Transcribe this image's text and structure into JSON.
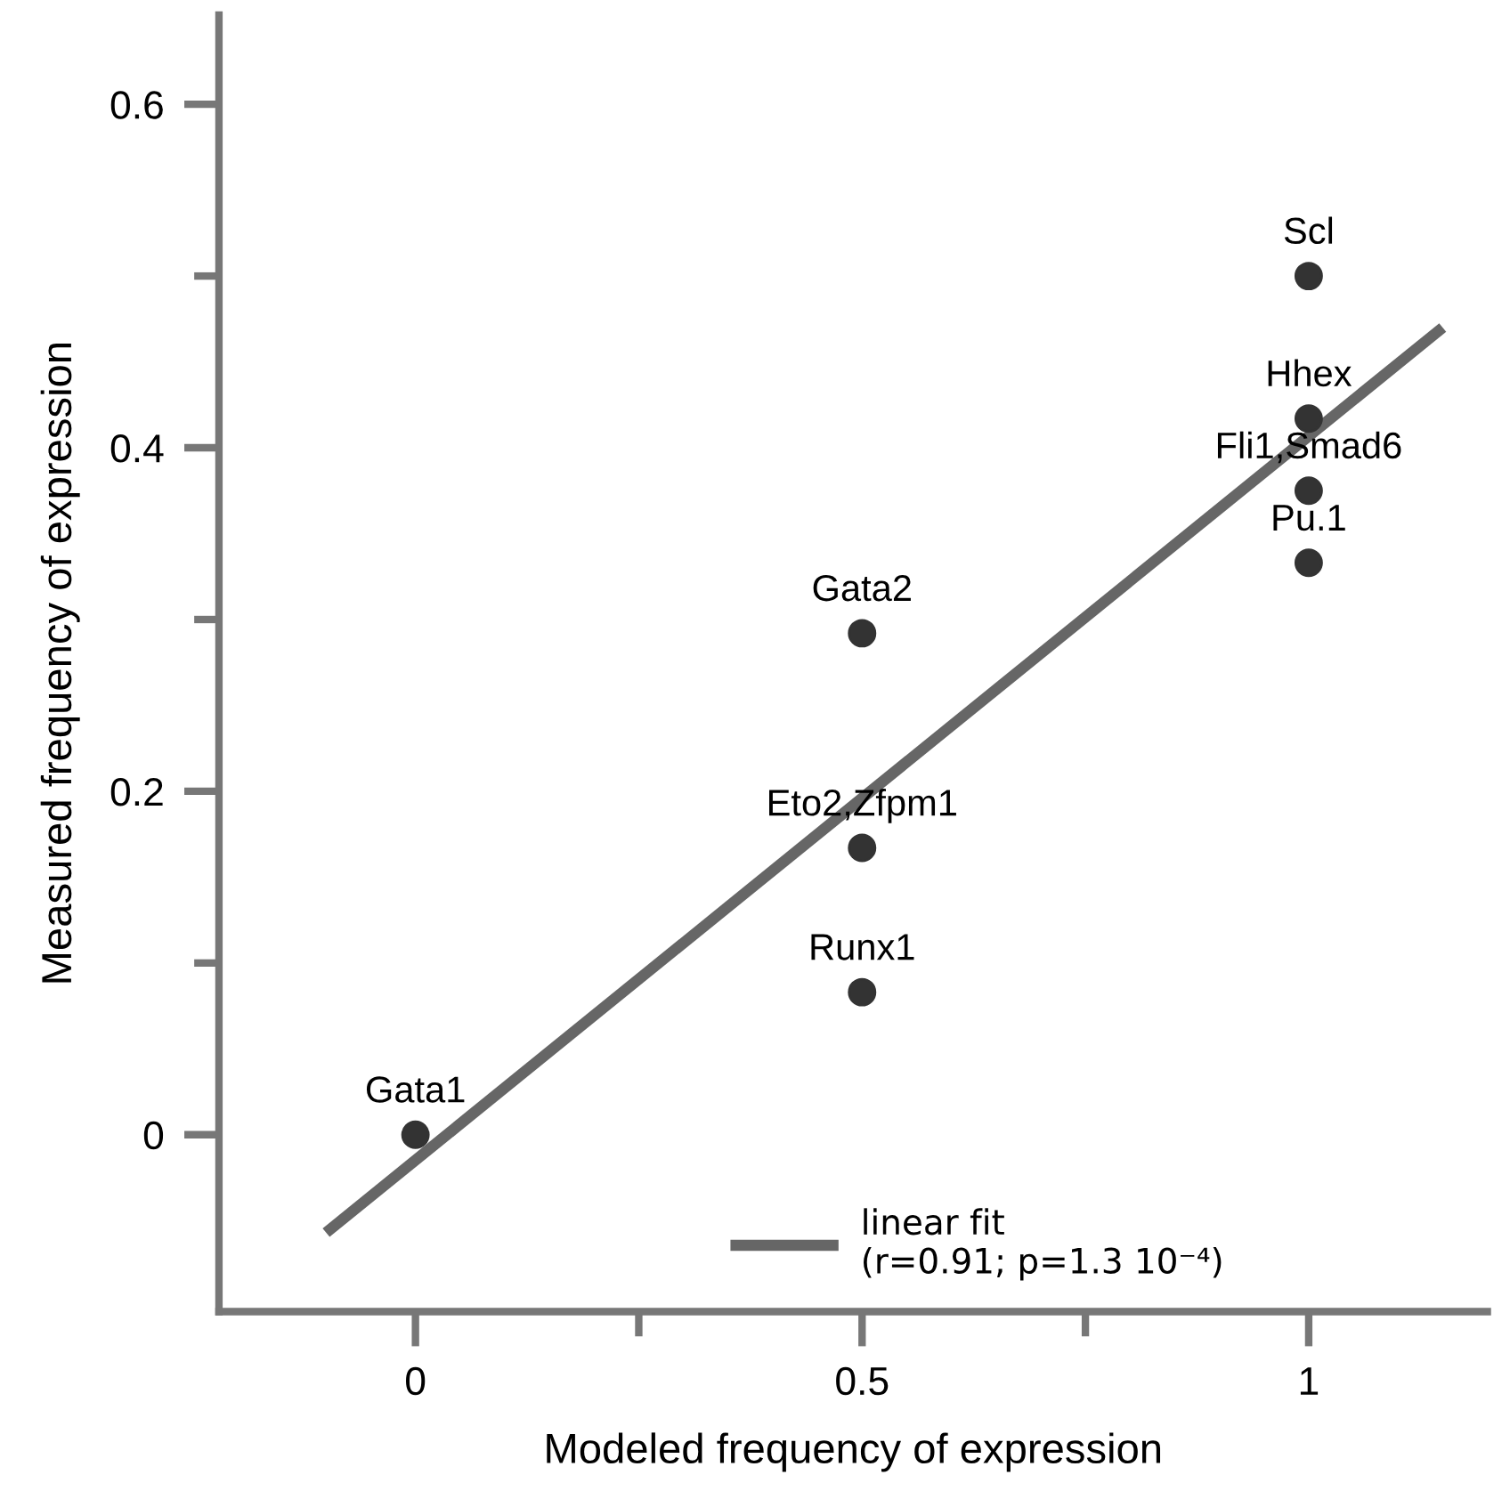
{
  "chart_data": {
    "type": "scatter",
    "xlabel": "Modeled frequency of expression",
    "ylabel": "Measured frequency of expression",
    "xlim": [
      -0.22,
      1.2
    ],
    "ylim": [
      -0.103,
      0.652
    ],
    "xticks": [
      0,
      {
        "value": 0.25,
        "label": null
      },
      0.5,
      {
        "value": 0.75,
        "label": null
      },
      1
    ],
    "yticks": [
      0,
      {
        "value": 0.1,
        "label": null
      },
      0.2,
      {
        "value": 0.3,
        "label": null
      },
      0.4,
      {
        "value": 0.5,
        "label": null
      },
      0.6
    ],
    "grid": false,
    "legend": "bottom",
    "series": [
      {
        "marker": "circle",
        "color": "#333333",
        "x": [
          0,
          0.5,
          0.5,
          0.5,
          1,
          1,
          1,
          1
        ],
        "values": [
          0,
          0.083,
          0.167,
          0.292,
          0.333,
          0.375,
          0.417,
          0.5
        ]
      },
      {
        "type": "line",
        "name": "linear fit\n(r=0.91; p=1.3 10⁻⁴)",
        "color": "#666666",
        "line_style": "solid",
        "x": [
          -0.1,
          1.15
        ],
        "values": [
          -0.057,
          0.47
        ]
      }
    ],
    "annotations": [
      {
        "text": "Gata1",
        "x": 0,
        "y": 0
      },
      {
        "text": "Runx1",
        "x": 0.5,
        "y": 0.083
      },
      {
        "text": "Eto2,Zfpm1",
        "x": 0.5,
        "y": 0.167
      },
      {
        "text": "Gata2",
        "x": 0.5,
        "y": 0.292
      },
      {
        "text": "Pu.1",
        "x": 1,
        "y": 0.333
      },
      {
        "text": "Fli1,Smad6",
        "x": 1,
        "y": 0.375
      },
      {
        "text": "Hhex",
        "x": 1,
        "y": 0.417
      },
      {
        "text": "Scl",
        "x": 1,
        "y": 0.5
      }
    ]
  }
}
